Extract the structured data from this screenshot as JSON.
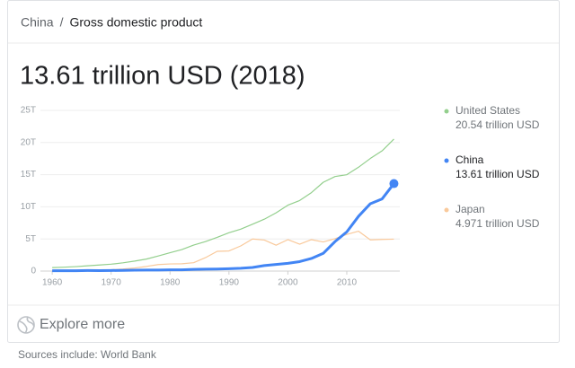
{
  "header": {
    "breadcrumb": [
      "China",
      "Gross domestic product"
    ],
    "separator": "/",
    "headline": "13.61 trillion USD (2018)"
  },
  "chart_data": {
    "type": "line",
    "x": [
      1960,
      1962,
      1964,
      1966,
      1968,
      1970,
      1972,
      1974,
      1976,
      1978,
      1980,
      1982,
      1984,
      1986,
      1988,
      1990,
      1992,
      1994,
      1996,
      1998,
      2000,
      2002,
      2004,
      2006,
      2008,
      2010,
      2012,
      2014,
      2016,
      2018
    ],
    "series": [
      {
        "name": "United States",
        "legend_label": "20.54 trillion USD",
        "color": "#93cf8d",
        "values": [
          0.54,
          0.6,
          0.69,
          0.82,
          0.94,
          1.07,
          1.28,
          1.55,
          1.87,
          2.35,
          2.86,
          3.34,
          4.04,
          4.58,
          5.24,
          5.96,
          6.52,
          7.29,
          8.07,
          9.06,
          10.25,
          10.98,
          12.21,
          13.81,
          14.71,
          14.99,
          16.16,
          17.52,
          18.71,
          20.54
        ]
      },
      {
        "name": "China",
        "legend_label": "13.61 trillion USD",
        "color": "#4285f4",
        "values": [
          0.06,
          0.05,
          0.06,
          0.08,
          0.07,
          0.09,
          0.11,
          0.14,
          0.15,
          0.15,
          0.19,
          0.2,
          0.26,
          0.3,
          0.31,
          0.36,
          0.43,
          0.56,
          0.86,
          1.03,
          1.21,
          1.47,
          1.96,
          2.75,
          4.59,
          6.09,
          8.53,
          10.48,
          11.23,
          13.61
        ]
      },
      {
        "name": "Japan",
        "legend_label": "4.971 trillion USD",
        "color": "#f9c99b",
        "values": [
          0.04,
          0.06,
          0.08,
          0.11,
          0.15,
          0.21,
          0.32,
          0.48,
          0.72,
          1.01,
          1.11,
          1.13,
          1.3,
          2.08,
          3.07,
          3.13,
          3.91,
          4.99,
          4.83,
          4.03,
          4.89,
          4.18,
          4.89,
          4.53,
          5.04,
          5.7,
          6.2,
          4.85,
          4.92,
          4.97
        ]
      }
    ],
    "xlim": [
      1958,
      2019
    ],
    "xticks": [
      1960,
      1970,
      1980,
      1990,
      2000,
      2010
    ],
    "ylim": [
      0,
      25
    ],
    "yticks": [
      {
        "value": 0,
        "label": "0"
      },
      {
        "value": 5,
        "label": "5T"
      },
      {
        "value": 10,
        "label": "10T"
      },
      {
        "value": 15,
        "label": "15T"
      },
      {
        "value": 20,
        "label": "20T"
      },
      {
        "value": 25,
        "label": "25T"
      }
    ],
    "grid": true,
    "highlight_series": 1
  },
  "footer": {
    "explore": "Explore more",
    "sources": "Sources include: World Bank"
  }
}
